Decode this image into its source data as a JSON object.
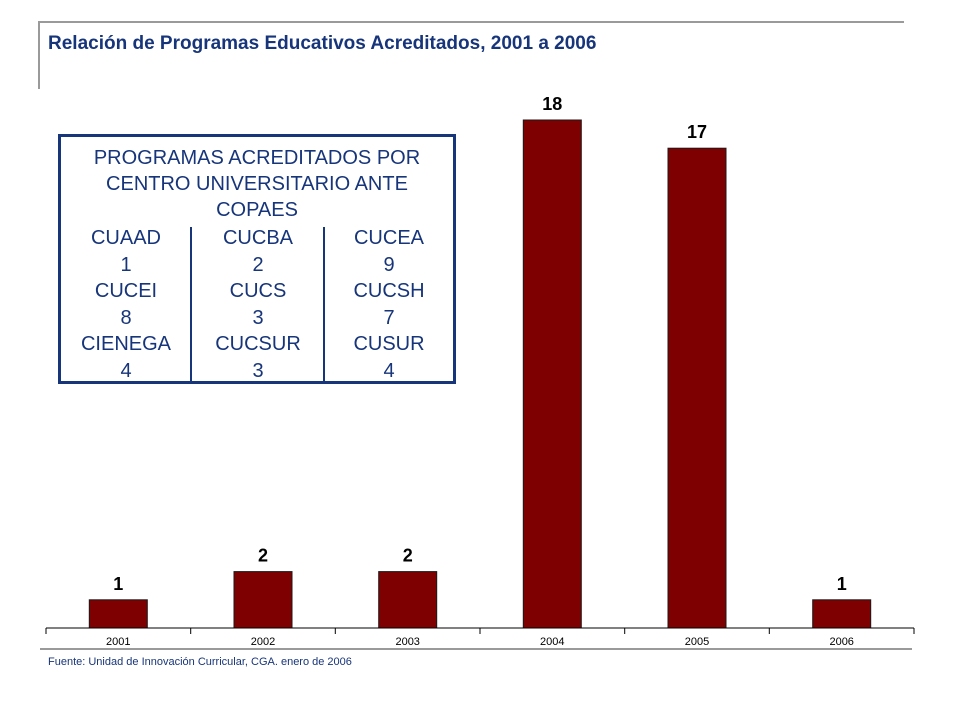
{
  "page": {
    "title": "Relación de Programas Educativos Acreditados, 2001 a 2006",
    "source": "Fuente: Unidad de Innovación Curricular, CGA. enero de 2006"
  },
  "legend": {
    "title_lines": [
      "PROGRAMAS ACREDITADOS POR",
      "CENTRO UNIVERSITARIO ANTE",
      "COPAES"
    ],
    "columns": [
      [
        {
          "name": "CUAAD",
          "value": "1"
        },
        {
          "name": "CUCEI",
          "value": "8"
        },
        {
          "name": "CIENEGA",
          "value": "4"
        }
      ],
      [
        {
          "name": "CUCBA",
          "value": "2"
        },
        {
          "name": "CUCS",
          "value": "3"
        },
        {
          "name": "CUCSUR",
          "value": "3"
        }
      ],
      [
        {
          "name": "CUCEA",
          "value": "9"
        },
        {
          "name": "CUCSH",
          "value": "7"
        },
        {
          "name": "CUSUR",
          "value": "4"
        }
      ]
    ]
  },
  "chart_data": {
    "type": "bar",
    "title": "Relación de Programas Educativos Acreditados, 2001 a 2006",
    "categories": [
      "2001",
      "2002",
      "2003",
      "2004",
      "2005",
      "2006"
    ],
    "values": [
      1,
      2,
      2,
      18,
      17,
      1
    ],
    "xlabel": "",
    "ylabel": "",
    "ylim": [
      0,
      18
    ],
    "grid": false,
    "data_labels": true,
    "bar_color": "#7f0000"
  },
  "colors": {
    "title": "#17357a",
    "bar": "#7f0000",
    "legend_border": "#17357a",
    "rule": "#9a9a9a"
  }
}
